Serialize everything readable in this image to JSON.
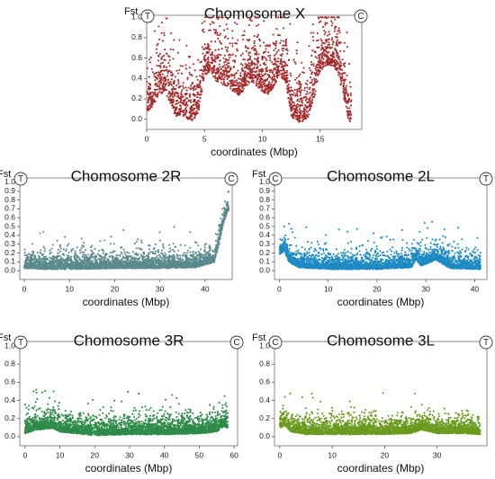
{
  "figure": {
    "shared_ylabel": "Fst",
    "shared_xlabel": "coordinates (Mbp)"
  },
  "chart_data": [
    {
      "type": "scatter",
      "title": "Chomosome X",
      "ylabel": "Fst",
      "xlabel": "coordinates (Mbp)",
      "color": "#a52a2a",
      "left_marker": "T",
      "right_marker": "C",
      "xlim": [
        0,
        18.6
      ],
      "ylim": [
        -0.1,
        1.02
      ],
      "xticks": [
        0,
        5,
        10,
        15
      ],
      "yticks": [
        0.0,
        0.2,
        0.4,
        0.6,
        0.8,
        1.0
      ],
      "ytick_labels": [
        "0.0",
        "0.2",
        "0.4",
        "0.6",
        "0.8",
        "1.0"
      ],
      "n_points": 2200,
      "trend_x": [
        0,
        0.5,
        1,
        1.5,
        2,
        2.5,
        3,
        3.5,
        4,
        4.5,
        5,
        5.5,
        6,
        6.5,
        7,
        7.5,
        8,
        8.5,
        9,
        9.5,
        10,
        10.5,
        11,
        11.5,
        12,
        12.5,
        13,
        13.5,
        14,
        14.5,
        15,
        15.5,
        16,
        16.5,
        17,
        17.5
      ],
      "trend_y": [
        0.15,
        0.2,
        0.3,
        0.35,
        0.25,
        0.1,
        0.12,
        0.08,
        0.06,
        0.15,
        0.5,
        0.55,
        0.45,
        0.42,
        0.4,
        0.35,
        0.3,
        0.38,
        0.45,
        0.4,
        0.35,
        0.3,
        0.4,
        0.5,
        0.45,
        0.1,
        0.05,
        0.05,
        0.1,
        0.3,
        0.55,
        0.6,
        0.6,
        0.55,
        0.3,
        0.05
      ],
      "spread": 0.22
    },
    {
      "type": "scatter",
      "title": "Chomosome 2R",
      "ylabel": "Fst",
      "xlabel": "coordinates (Mbp)",
      "color": "#5b8a8e",
      "left_marker": "T",
      "right_marker": "C",
      "xlim": [
        -1,
        46
      ],
      "ylim": [
        -0.1,
        1.05
      ],
      "xticks": [
        0,
        10,
        20,
        30,
        40
      ],
      "yticks": [
        0.0,
        0.1,
        0.2,
        0.3,
        0.4,
        0.5,
        0.6,
        0.7,
        0.8,
        0.9,
        1.0
      ],
      "ytick_labels": [
        "0.0",
        "0.1",
        "0.2",
        "0.3",
        "0.4",
        "0.5",
        "0.6",
        "0.7",
        "0.8",
        "0.9",
        "1.0"
      ],
      "n_points": 3400,
      "trend_x": [
        0,
        5,
        10,
        20,
        30,
        38,
        42,
        43,
        44,
        45
      ],
      "trend_y": [
        0.05,
        0.04,
        0.04,
        0.05,
        0.05,
        0.06,
        0.12,
        0.3,
        0.55,
        0.7
      ],
      "spread": 0.07
    },
    {
      "type": "scatter",
      "title": "Chomosome 2L",
      "ylabel": "Fst",
      "xlabel": "coordinates (Mbp)",
      "color": "#1e8bc3",
      "left_marker": "C",
      "right_marker": "T",
      "xlim": [
        -1,
        42.5
      ],
      "ylim": [
        -0.1,
        1.05
      ],
      "xticks": [
        0,
        10,
        20,
        30,
        40
      ],
      "yticks": [
        0.0,
        0.1,
        0.2,
        0.3,
        0.4,
        0.5,
        0.6,
        0.7,
        0.8,
        0.9,
        1.0
      ],
      "ytick_labels": [
        "0.0",
        "0.1",
        "0.2",
        "0.3",
        "0.4",
        "0.5",
        "0.6",
        "0.7",
        "0.8",
        "0.9",
        "1.0"
      ],
      "n_points": 3400,
      "trend_x": [
        0,
        1,
        2,
        4,
        10,
        20,
        27,
        28,
        29,
        31,
        32,
        35,
        41
      ],
      "trend_y": [
        0.2,
        0.25,
        0.12,
        0.06,
        0.04,
        0.04,
        0.06,
        0.15,
        0.08,
        0.12,
        0.15,
        0.05,
        0.04
      ],
      "spread": 0.07
    },
    {
      "type": "scatter",
      "title": "Chomosome 3R",
      "ylabel": "Fst",
      "xlabel": "coordinates (Mbp)",
      "color": "#2e8b4a",
      "left_marker": "T",
      "right_marker": "C",
      "xlim": [
        -1.5,
        61
      ],
      "ylim": [
        -0.1,
        1.05
      ],
      "xticks": [
        0,
        10,
        20,
        30,
        40,
        50,
        60
      ],
      "yticks": [
        0.0,
        0.2,
        0.4,
        0.6,
        0.8,
        1.0
      ],
      "ytick_labels": [
        "0.0",
        "0.2",
        "0.4",
        "0.6",
        "0.8",
        "1.0"
      ],
      "n_points": 3600,
      "trend_x": [
        0,
        3,
        8,
        10,
        15,
        20,
        30,
        40,
        50,
        55,
        57,
        58
      ],
      "trend_y": [
        0.06,
        0.1,
        0.12,
        0.08,
        0.06,
        0.04,
        0.05,
        0.05,
        0.06,
        0.08,
        0.14,
        0.12
      ],
      "spread": 0.075
    },
    {
      "type": "scatter",
      "title": "Chomosome 3L",
      "ylabel": "Fst",
      "xlabel": "coordinates (Mbp)",
      "color": "#6b9a1f",
      "left_marker": "C",
      "right_marker": "T",
      "xlim": [
        -1,
        39.5
      ],
      "ylim": [
        -0.1,
        1.05
      ],
      "xticks": [
        0,
        10,
        20,
        30
      ],
      "yticks": [
        0.0,
        0.2,
        0.4,
        0.6,
        0.8,
        1.0
      ],
      "ytick_labels": [
        "0.0",
        "0.2",
        "0.4",
        "0.6",
        "0.8",
        "1.0"
      ],
      "n_points": 3400,
      "trend_x": [
        0,
        1,
        2,
        5,
        10,
        20,
        25,
        27,
        30,
        35,
        38
      ],
      "trend_y": [
        0.12,
        0.15,
        0.08,
        0.05,
        0.05,
        0.05,
        0.06,
        0.1,
        0.06,
        0.06,
        0.05
      ],
      "spread": 0.07
    }
  ]
}
